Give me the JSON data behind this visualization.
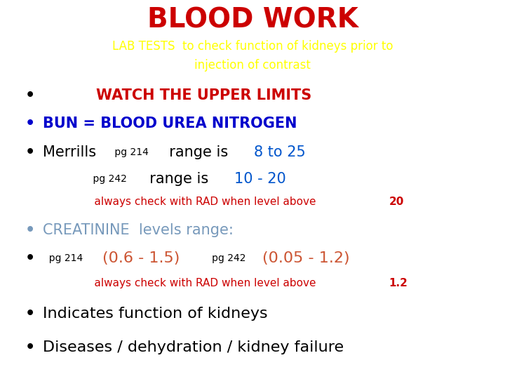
{
  "title": "BLOOD WORK",
  "title_color": "#CC0000",
  "subtitle1": "LAB TESTS  to check function of kidneys prior to",
  "subtitle2": "injection of contrast",
  "subtitle_color": "#FFFF00",
  "bg_color": "#FFFFFF",
  "title_fontsize": 28,
  "subtitle_fontsize": 12,
  "fig_width": 7.2,
  "fig_height": 5.4,
  "dpi": 100
}
